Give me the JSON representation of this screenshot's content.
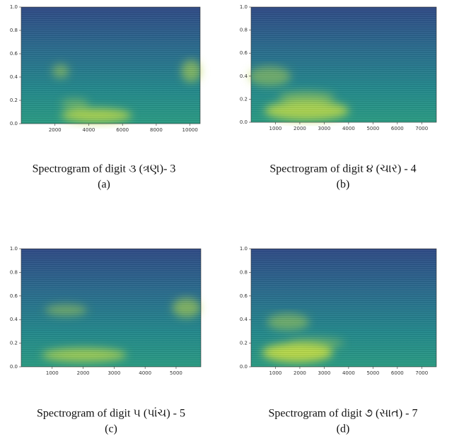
{
  "chart_data": [
    {
      "type": "spectrogram",
      "caption": "Spectrogram of digit ૩ (ત્રણ)- 3",
      "label": "(a)",
      "xlim": [
        0,
        10600
      ],
      "xticks": [
        2000,
        4000,
        6000,
        8000,
        10000
      ],
      "ylim": [
        0,
        1
      ],
      "yticks": [
        {
          "value": 0,
          "label": "0.0"
        },
        {
          "value": 0.2,
          "label": "0.2"
        },
        {
          "value": 0.4,
          "label": "0.4"
        },
        {
          "value": 0.6,
          "label": "0.6"
        },
        {
          "value": 0.8,
          "label": "0.8"
        },
        {
          "value": 1,
          "label": "1.0"
        }
      ]
    },
    {
      "type": "spectrogram",
      "caption": "Spectrogram of digit ૪ (ચાર) - 4",
      "label": "(b)",
      "xlim": [
        0,
        7600
      ],
      "xticks": [
        1000,
        2000,
        3000,
        4000,
        5000,
        6000,
        7000
      ],
      "ylim": [
        0,
        1
      ],
      "yticks": [
        {
          "value": 0,
          "label": "0.0"
        },
        {
          "value": 0.2,
          "label": "0.2"
        },
        {
          "value": 0.4,
          "label": "0.4"
        },
        {
          "value": 0.6,
          "label": "0.6"
        },
        {
          "value": 0.8,
          "label": "0.8"
        },
        {
          "value": 1,
          "label": "1.0"
        }
      ]
    },
    {
      "type": "spectrogram",
      "caption": "Spectrogram of digit ૫ (પાંચ) - 5",
      "label": "(c)",
      "xlim": [
        0,
        5800
      ],
      "xticks": [
        1000,
        2000,
        3000,
        4000,
        5000
      ],
      "ylim": [
        0,
        1
      ],
      "yticks": [
        {
          "value": 0,
          "label": "0.0"
        },
        {
          "value": 0.2,
          "label": "0.2"
        },
        {
          "value": 0.4,
          "label": "0.4"
        },
        {
          "value": 0.6,
          "label": "0.6"
        },
        {
          "value": 0.8,
          "label": "0.8"
        },
        {
          "value": 1,
          "label": "1.0"
        }
      ]
    },
    {
      "type": "spectrogram",
      "caption": "Spectrogram of digit ૭ (સાત) - 7",
      "label": "(d)",
      "xlim": [
        0,
        7600
      ],
      "xticks": [
        1000,
        2000,
        3000,
        4000,
        5000,
        6000,
        7000
      ],
      "ylim": [
        0,
        1
      ],
      "yticks": [
        {
          "value": 0,
          "label": "0.0"
        },
        {
          "value": 0.2,
          "label": "0.2"
        },
        {
          "value": 0.4,
          "label": "0.4"
        },
        {
          "value": 0.6,
          "label": "0.6"
        },
        {
          "value": 0.8,
          "label": "0.8"
        },
        {
          "value": 1,
          "label": "1.0"
        }
      ]
    }
  ]
}
